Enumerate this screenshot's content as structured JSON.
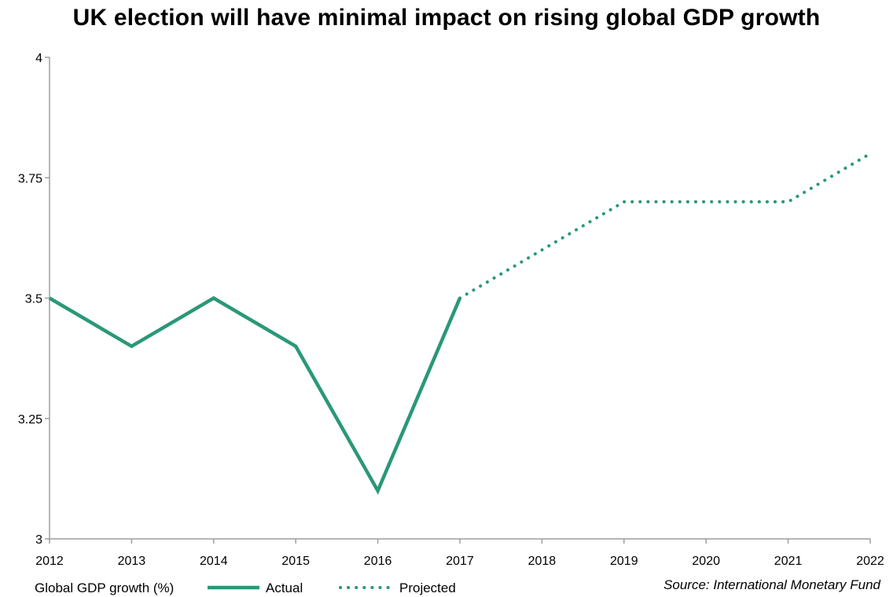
{
  "chart_data": {
    "type": "line",
    "title": "UK election will have minimal impact on rising global GDP growth",
    "xlabel": "",
    "ylabel": "",
    "x": [
      2012,
      2013,
      2014,
      2015,
      2016,
      2017,
      2018,
      2019,
      2020,
      2021,
      2022
    ],
    "x_tick_labels": [
      "2012",
      "2013",
      "2014",
      "2015",
      "2016",
      "2017",
      "2018",
      "2019",
      "2020",
      "2021",
      "2022"
    ],
    "y_tick_labels": [
      "3",
      "3.25",
      "3.5",
      "3.75",
      "4"
    ],
    "y_ticks": [
      3,
      3.25,
      3.5,
      3.75,
      4
    ],
    "ylim": [
      3,
      4
    ],
    "xlim": [
      2012,
      2022
    ],
    "grid": false,
    "legend_position": "bottom-left",
    "legend_title": "Global GDP growth (%)",
    "series": [
      {
        "name": "Actual",
        "style": "solid",
        "x": [
          2012,
          2013,
          2014,
          2015,
          2016,
          2017
        ],
        "values": [
          3.5,
          3.4,
          3.5,
          3.4,
          3.1,
          3.5
        ]
      },
      {
        "name": "Projected",
        "style": "dotted",
        "x": [
          2017,
          2018,
          2019,
          2020,
          2021,
          2022
        ],
        "values": [
          3.5,
          3.6,
          3.7,
          3.7,
          3.7,
          3.8
        ]
      }
    ],
    "source": "Source: International Monetary Fund",
    "colors": {
      "series": "#2a9878",
      "axis": "#9e9e9e"
    }
  }
}
